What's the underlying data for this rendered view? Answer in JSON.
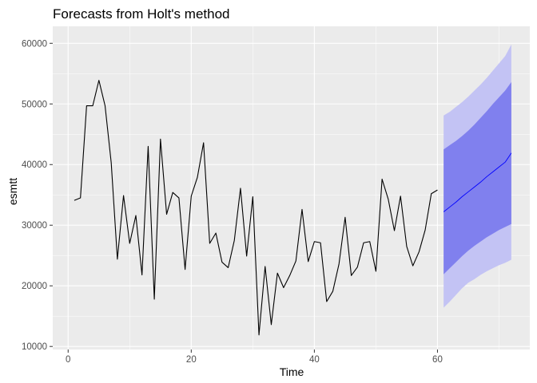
{
  "chart_data": {
    "type": "line",
    "title": "Forecasts from Holt's method",
    "xlabel": "Time",
    "ylabel": "esmtt",
    "xlim": [
      -2.5,
      75
    ],
    "ylim": [
      9500,
      62800
    ],
    "x_ticks": [
      0,
      20,
      40,
      60
    ],
    "y_ticks": [
      10000,
      20000,
      30000,
      40000,
      50000,
      60000
    ],
    "x_tick_labels": [
      "0",
      "20",
      "40",
      "60"
    ],
    "y_tick_labels": [
      "10000",
      "20000",
      "30000",
      "40000",
      "50000",
      "60000"
    ],
    "grid": true,
    "colors": {
      "panel_bg": "#ebebeb",
      "grid_major": "#ffffff",
      "series_line": "#000000",
      "forecast_line": "#0000ff",
      "pi_95": "#c3c3f4",
      "pi_80": "#8080ee"
    },
    "series": [
      {
        "x": [
          1,
          2,
          3,
          4,
          5,
          6,
          7,
          8,
          9,
          10,
          11,
          12,
          13,
          14,
          15,
          16,
          17,
          18,
          19,
          20,
          21,
          22,
          23,
          24,
          25,
          26,
          27,
          28,
          29,
          30,
          31,
          32,
          33,
          34,
          35,
          36,
          37,
          38,
          39,
          40,
          41,
          42,
          43,
          44,
          45,
          46,
          47,
          48,
          49,
          50,
          51,
          52,
          53,
          54,
          55,
          56,
          57,
          58,
          59,
          60
        ],
        "values": [
          34100,
          34500,
          49700,
          49700,
          53900,
          49700,
          40300,
          24400,
          34900,
          27000,
          31600,
          21800,
          43000,
          17800,
          44200,
          31800,
          35400,
          34500,
          22700,
          34800,
          37900,
          43600,
          27000,
          28700,
          23900,
          23000,
          27500,
          36100,
          24900,
          34700,
          11900,
          23200,
          13600,
          22100,
          19700,
          21700,
          24100,
          32600,
          24000,
          27300,
          27100,
          17400,
          19100,
          23600,
          31300,
          21700,
          23100,
          27100,
          27300,
          22400,
          37600,
          34300,
          29100,
          34800,
          26500,
          23300,
          25600,
          29200,
          35200,
          35800
        ]
      },
      {
        "x": [
          61,
          62,
          63,
          64,
          65,
          66,
          67,
          68,
          69,
          70,
          71,
          72
        ],
        "values": [
          32200,
          33000,
          33800,
          34700,
          35500,
          36300,
          37100,
          38000,
          38800,
          39600,
          40400,
          41900
        ]
      }
    ],
    "intervals": {
      "pi_80_low": [
        21900,
        22900,
        23900,
        24900,
        25800,
        26600,
        27300,
        28000,
        28600,
        29200,
        29700,
        30200
      ],
      "pi_80_high": [
        42500,
        43200,
        43900,
        44700,
        45600,
        46600,
        47700,
        48800,
        50000,
        51100,
        52200,
        53600
      ],
      "pi_95_low": [
        16400,
        17400,
        18500,
        19600,
        20500,
        21100,
        21800,
        22400,
        22900,
        23400,
        23800,
        24300
      ],
      "pi_95_high": [
        48100,
        48700,
        49500,
        50300,
        51200,
        52200,
        53200,
        54300,
        55500,
        56700,
        57900,
        59800
      ]
    }
  }
}
